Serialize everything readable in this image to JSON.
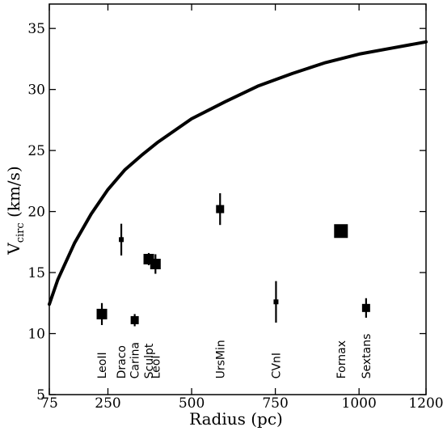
{
  "chart_data": {
    "type": "scatter",
    "xlabel": "Radius (pc)",
    "ylabel": {
      "main": "V",
      "sub": "circ",
      "unit": " (km/s)"
    },
    "xlim": [
      75,
      1200
    ],
    "ylim": [
      5,
      37
    ],
    "x_ticks": [
      75,
      250,
      500,
      750,
      1000,
      1200
    ],
    "y_ticks": [
      5,
      10,
      15,
      20,
      25,
      30,
      35
    ],
    "curve": {
      "x": [
        75,
        100,
        150,
        200,
        250,
        300,
        350,
        400,
        500,
        600,
        700,
        800,
        900,
        1000,
        1100,
        1200
      ],
      "y": [
        12.4,
        14.4,
        17.4,
        19.8,
        21.8,
        23.4,
        24.6,
        25.7,
        27.6,
        29.0,
        30.3,
        31.3,
        32.2,
        32.9,
        33.4,
        33.9
      ]
    },
    "points": [
      {
        "name": "LeoII",
        "x": 232,
        "y": 11.6,
        "err": 0.9,
        "size": "large"
      },
      {
        "name": "Draco",
        "x": 290,
        "y": 17.7,
        "err": 1.3,
        "size": "small"
      },
      {
        "name": "Carina",
        "x": 330,
        "y": 11.1,
        "err": 0.5,
        "size": "medium"
      },
      {
        "name": "Sculpt",
        "x": 372,
        "y": 16.1,
        "err": 0.5,
        "size": "large"
      },
      {
        "name": "LeoI",
        "x": 392,
        "y": 15.7,
        "err": 0.8,
        "size": "large"
      },
      {
        "name": "UrsMin",
        "x": 585,
        "y": 20.2,
        "err": 1.3,
        "size": "medium"
      },
      {
        "name": "CVnI",
        "x": 752,
        "y": 12.6,
        "err": 1.7,
        "size": "small"
      },
      {
        "name": "Fornax",
        "x": 946,
        "y": 18.4,
        "err": 0.2,
        "size": "xlarge"
      },
      {
        "name": "Sextans",
        "x": 1021,
        "y": 12.1,
        "err": 0.8,
        "size": "medium"
      }
    ]
  }
}
